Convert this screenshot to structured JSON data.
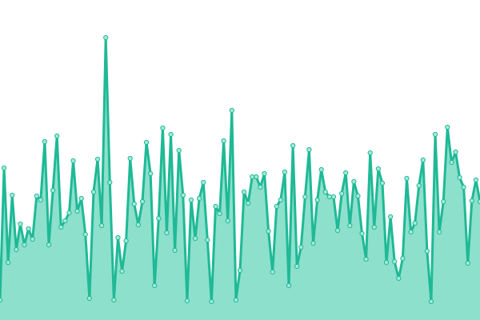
{
  "chart_data": {
    "type": "area",
    "values": [
      25,
      190,
      72,
      156,
      88,
      120,
      94,
      114,
      101,
      155,
      150,
      223,
      94,
      162,
      230,
      116,
      124,
      134,
      199,
      136,
      152,
      107,
      27,
      160,
      201,
      118,
      353,
      172,
      25,
      103,
      61,
      99,
      202,
      145,
      119,
      148,
      222,
      183,
      43,
      127,
      240,
      109,
      232,
      87,
      212,
      156,
      24,
      150,
      102,
      152,
      172,
      100,
      23,
      142,
      133,
      224,
      124,
      262,
      25,
      62,
      160,
      146,
      179,
      179,
      166,
      183,
      111,
      60,
      142,
      150,
      185,
      43,
      218,
      67,
      91,
      154,
      213,
      96,
      150,
      188,
      160,
      154,
      154,
      112,
      158,
      184,
      118,
      173,
      155,
      108,
      76,
      209,
      116,
      189,
      171,
      72,
      129,
      73,
      52,
      77,
      177,
      110,
      121,
      168,
      200,
      86,
      23,
      232,
      110,
      148,
      241,
      197,
      210,
      178,
      166,
      71,
      149,
      175,
      148
    ],
    "ylim": [
      0,
      400
    ],
    "color": "#1fb996",
    "fill": "#8de0cc",
    "marker_fill": "#a6ead8"
  }
}
